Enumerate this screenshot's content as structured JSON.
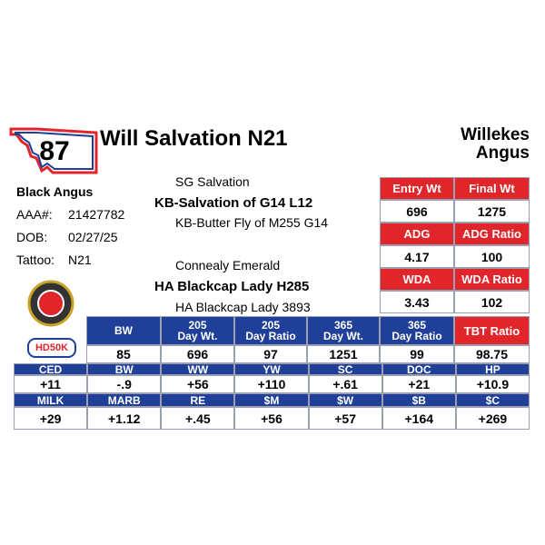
{
  "lot": "87",
  "title": "Will Salvation N21",
  "breeder": [
    "Willekes",
    "Angus"
  ],
  "info": {
    "breed": "Black Angus",
    "rows": [
      [
        "AAA#:",
        "21427782"
      ],
      [
        "DOB:",
        "02/27/25"
      ],
      [
        "Tattoo:",
        "N21"
      ]
    ]
  },
  "pedigree": [
    "SG Salvation",
    "KB-Salvation of G14 L12",
    "KB-Butter Fly of M255 G14",
    "Connealy Emerald",
    "HA Blackcap Lady H285",
    "HA Blackcap Lady 3893"
  ],
  "logo": "HD50K",
  "test": {
    "rows": [
      [
        "Entry Wt",
        "Final Wt"
      ],
      [
        "696",
        "1275"
      ],
      [
        "ADG",
        "ADG Ratio"
      ],
      [
        "4.17",
        "100"
      ],
      [
        "WDA",
        "WDA Ratio"
      ],
      [
        "3.43",
        "102"
      ]
    ]
  },
  "performance": {
    "headers": [
      [
        "BW"
      ],
      [
        "205",
        "Day Wt."
      ],
      [
        "205",
        "Day Ratio"
      ],
      [
        "365",
        "Day Wt."
      ],
      [
        "365",
        "Day Ratio"
      ],
      [
        "TBT Ratio"
      ]
    ],
    "values": [
      "85",
      "696",
      "97",
      "1251",
      "99",
      "98.75"
    ]
  },
  "epd": {
    "rows": [
      [
        "CED",
        "BW",
        "WW",
        "YW",
        "SC",
        "DOC",
        "HP"
      ],
      [
        "+11",
        "-.9",
        "+56",
        "+110",
        "+.61",
        "+21",
        "+10.9"
      ],
      [
        "MILK",
        "MARB",
        "RE",
        "$M",
        "$W",
        "$B",
        "$C"
      ],
      [
        "+29",
        "+1.12",
        "+.45",
        "+56",
        "+57",
        "+164",
        "+269"
      ]
    ]
  }
}
